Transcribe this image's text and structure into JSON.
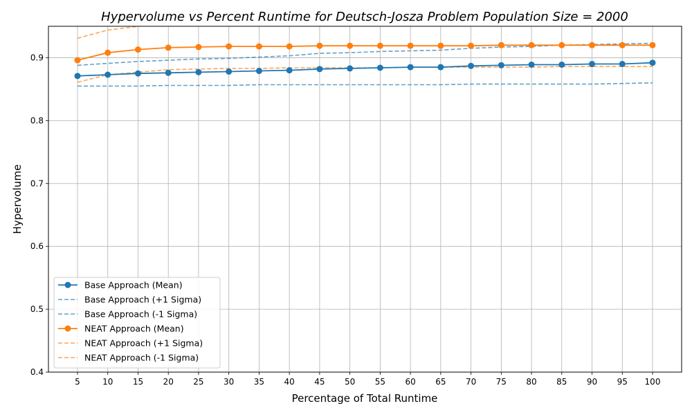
{
  "chart_data": {
    "type": "line",
    "title": "Hypervolume vs Percent Runtime for Deutsch-Josza Problem Population Size = 2000",
    "xlabel": "Percentage of Total Runtime",
    "ylabel": "Hypervolume",
    "x": [
      5,
      10,
      15,
      20,
      25,
      30,
      35,
      40,
      45,
      50,
      55,
      60,
      65,
      70,
      75,
      80,
      85,
      90,
      95,
      100
    ],
    "ylim": [
      0.4,
      0.95
    ],
    "yticks": [
      "0.4",
      "0.5",
      "0.6",
      "0.7",
      "0.8",
      "0.9"
    ],
    "grid": true,
    "legend_position": "lower-left",
    "series": [
      {
        "name": "Base Approach (Mean)",
        "color": "#1f77b4",
        "style": "solid-marker",
        "values": [
          0.871,
          0.873,
          0.875,
          0.876,
          0.877,
          0.878,
          0.879,
          0.88,
          0.882,
          0.883,
          0.884,
          0.885,
          0.885,
          0.887,
          0.888,
          0.889,
          0.889,
          0.89,
          0.89,
          0.892
        ]
      },
      {
        "name": "Base Approach (+1 Sigma)",
        "color": "#1f77b4",
        "style": "dashed",
        "values": [
          0.888,
          0.891,
          0.894,
          0.896,
          0.898,
          0.899,
          0.901,
          0.903,
          0.907,
          0.908,
          0.91,
          0.911,
          0.912,
          0.915,
          0.917,
          0.918,
          0.92,
          0.921,
          0.922,
          0.923
        ]
      },
      {
        "name": "Base Approach (-1 Sigma)",
        "color": "#1f77b4",
        "style": "dashed",
        "values": [
          0.855,
          0.855,
          0.855,
          0.856,
          0.856,
          0.856,
          0.857,
          0.857,
          0.857,
          0.857,
          0.857,
          0.857,
          0.857,
          0.858,
          0.858,
          0.858,
          0.858,
          0.858,
          0.859,
          0.86
        ]
      },
      {
        "name": "NEAT Approach (Mean)",
        "color": "#ff7f0e",
        "style": "solid-marker",
        "values": [
          0.896,
          0.908,
          0.913,
          0.916,
          0.917,
          0.918,
          0.918,
          0.918,
          0.919,
          0.919,
          0.919,
          0.919,
          0.919,
          0.919,
          0.92,
          0.92,
          0.92,
          0.92,
          0.92,
          0.92
        ]
      },
      {
        "name": "NEAT Approach (+1 Sigma)",
        "color": "#ff7f0e",
        "style": "dashed",
        "values": [
          0.931,
          0.944,
          0.95,
          0.952,
          0.953,
          0.954,
          0.954,
          0.954,
          0.955,
          0.955,
          0.955,
          0.955,
          0.955,
          0.955,
          0.955,
          0.955,
          0.955,
          0.955,
          0.955,
          0.955
        ]
      },
      {
        "name": "NEAT Approach (-1 Sigma)",
        "color": "#ff7f0e",
        "style": "dashed",
        "values": [
          0.861,
          0.873,
          0.877,
          0.881,
          0.882,
          0.883,
          0.883,
          0.884,
          0.884,
          0.884,
          0.884,
          0.885,
          0.885,
          0.885,
          0.885,
          0.885,
          0.886,
          0.886,
          0.886,
          0.886
        ]
      }
    ]
  }
}
